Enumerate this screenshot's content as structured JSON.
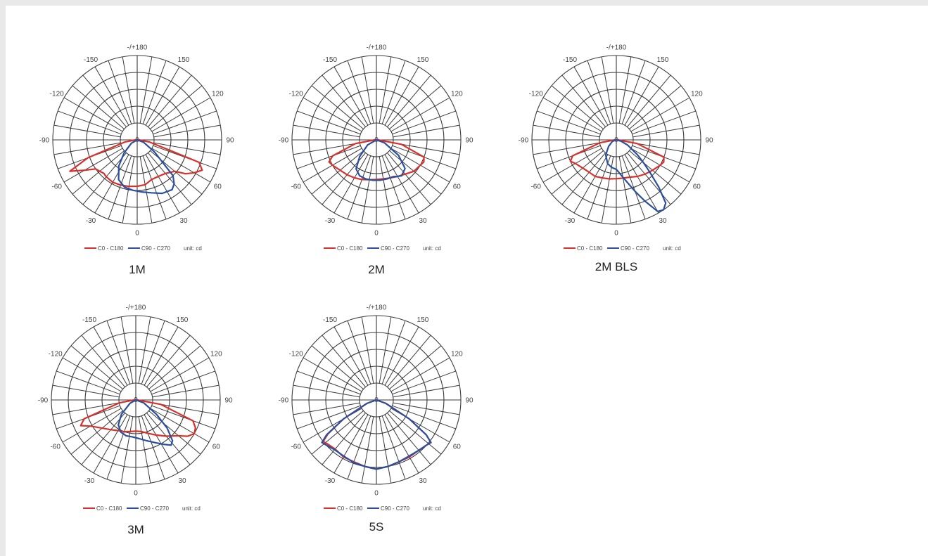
{
  "colors": {
    "c0_c180": "#d9302b",
    "c90_c270": "#2b4fa0",
    "grid": "#3a3a3a"
  },
  "chart_data": [
    {
      "type": "polar",
      "title": "1M",
      "angle_labels": [
        "-/+180",
        "150",
        "120",
        "90",
        "60",
        "30",
        "0",
        "-30",
        "-60",
        "-90",
        "-120",
        "-150"
      ],
      "center_label": "0",
      "legend": [
        "C0 - C180",
        "C90 - C270",
        "unit: cd"
      ],
      "series": [
        {
          "name": "C0 - C180",
          "color": "#d9302b",
          "points": [
            [
              -90,
              0.02
            ],
            [
              -80,
              0.15
            ],
            [
              -70,
              0.62
            ],
            [
              -65,
              0.88
            ],
            [
              -60,
              0.72
            ],
            [
              -55,
              0.6
            ],
            [
              -50,
              0.58
            ],
            [
              -45,
              0.56
            ],
            [
              -40,
              0.57
            ],
            [
              -30,
              0.58
            ],
            [
              -20,
              0.57
            ],
            [
              -10,
              0.56
            ],
            [
              0,
              0.55
            ],
            [
              10,
              0.54
            ],
            [
              20,
              0.5
            ],
            [
              30,
              0.5
            ],
            [
              40,
              0.52
            ],
            [
              50,
              0.58
            ],
            [
              55,
              0.7
            ],
            [
              60,
              0.78
            ],
            [
              65,
              0.85
            ],
            [
              70,
              0.78
            ],
            [
              80,
              0.15
            ],
            [
              90,
              0.02
            ]
          ]
        },
        {
          "name": "C90 - C270",
          "color": "#2b4fa0",
          "points": [
            [
              -90,
              0.0
            ],
            [
              -60,
              0.08
            ],
            [
              -45,
              0.22
            ],
            [
              -35,
              0.38
            ],
            [
              -25,
              0.52
            ],
            [
              -15,
              0.58
            ],
            [
              -5,
              0.6
            ],
            [
              5,
              0.62
            ],
            [
              15,
              0.65
            ],
            [
              25,
              0.7
            ],
            [
              35,
              0.72
            ],
            [
              40,
              0.68
            ],
            [
              45,
              0.6
            ],
            [
              55,
              0.25
            ],
            [
              70,
              0.08
            ],
            [
              90,
              0.0
            ]
          ]
        }
      ]
    },
    {
      "type": "polar",
      "title": "2M",
      "angle_labels": [
        "-/+180",
        "150",
        "120",
        "90",
        "60",
        "30",
        "0",
        "-30",
        "-60",
        "-90",
        "-120",
        "-150"
      ],
      "center_label": "0",
      "legend": [
        "C0 - C180",
        "C90 - C270",
        "unit: cd"
      ],
      "series": [
        {
          "name": "C0 - C180",
          "color": "#d9302b",
          "points": [
            [
              -90,
              0.02
            ],
            [
              -80,
              0.25
            ],
            [
              -70,
              0.55
            ],
            [
              -65,
              0.62
            ],
            [
              -60,
              0.6
            ],
            [
              -50,
              0.56
            ],
            [
              -40,
              0.54
            ],
            [
              -30,
              0.52
            ],
            [
              -20,
              0.5
            ],
            [
              -10,
              0.48
            ],
            [
              0,
              0.47
            ],
            [
              10,
              0.47
            ],
            [
              20,
              0.48
            ],
            [
              30,
              0.5
            ],
            [
              40,
              0.53
            ],
            [
              50,
              0.58
            ],
            [
              60,
              0.6
            ],
            [
              65,
              0.62
            ],
            [
              70,
              0.6
            ],
            [
              80,
              0.3
            ],
            [
              90,
              0.02
            ]
          ]
        },
        {
          "name": "C90 - C270",
          "color": "#2b4fa0",
          "points": [
            [
              -90,
              0.0
            ],
            [
              -60,
              0.12
            ],
            [
              -45,
              0.28
            ],
            [
              -35,
              0.42
            ],
            [
              -25,
              0.47
            ],
            [
              -15,
              0.48
            ],
            [
              -5,
              0.48
            ],
            [
              5,
              0.48
            ],
            [
              15,
              0.48
            ],
            [
              25,
              0.48
            ],
            [
              30,
              0.5
            ],
            [
              35,
              0.52
            ],
            [
              45,
              0.48
            ],
            [
              55,
              0.32
            ],
            [
              70,
              0.1
            ],
            [
              90,
              0.0
            ]
          ]
        }
      ]
    },
    {
      "type": "polar",
      "title": "2M BLS",
      "angle_labels": [
        "-/+180",
        "150",
        "120",
        "90",
        "60",
        "30",
        "0",
        "-30",
        "-60",
        "-90",
        "-120",
        "-150"
      ],
      "center_label": "0",
      "legend": [
        "C0 - C180",
        "C90 - C270",
        "unit: cd"
      ],
      "series": [
        {
          "name": "C0 - C180",
          "color": "#d9302b",
          "points": [
            [
              -90,
              0.02
            ],
            [
              -80,
              0.2
            ],
            [
              -70,
              0.55
            ],
            [
              -65,
              0.6
            ],
            [
              -60,
              0.56
            ],
            [
              -50,
              0.52
            ],
            [
              -40,
              0.5
            ],
            [
              -30,
              0.5
            ],
            [
              -20,
              0.48
            ],
            [
              -10,
              0.47
            ],
            [
              0,
              0.46
            ],
            [
              10,
              0.46
            ],
            [
              20,
              0.47
            ],
            [
              30,
              0.5
            ],
            [
              40,
              0.53
            ],
            [
              50,
              0.56
            ],
            [
              60,
              0.6
            ],
            [
              65,
              0.62
            ],
            [
              70,
              0.6
            ],
            [
              80,
              0.25
            ],
            [
              90,
              0.02
            ]
          ]
        },
        {
          "name": "C90 - C270",
          "color": "#2b4fa0",
          "points": [
            [
              -90,
              0.0
            ],
            [
              -70,
              0.05
            ],
            [
              -50,
              0.12
            ],
            [
              -35,
              0.22
            ],
            [
              -20,
              0.3
            ],
            [
              -10,
              0.33
            ],
            [
              0,
              0.35
            ],
            [
              10,
              0.45
            ],
            [
              20,
              0.65
            ],
            [
              25,
              0.8
            ],
            [
              30,
              0.98
            ],
            [
              34,
              1.0
            ],
            [
              38,
              0.95
            ],
            [
              42,
              0.75
            ],
            [
              46,
              0.55
            ],
            [
              50,
              0.42
            ],
            [
              55,
              0.3
            ],
            [
              65,
              0.15
            ],
            [
              75,
              0.06
            ],
            [
              90,
              0.0
            ]
          ]
        }
      ]
    },
    {
      "type": "polar",
      "title": "3M",
      "angle_labels": [
        "-/+180",
        "150",
        "120",
        "90",
        "60",
        "30",
        "0",
        "-30",
        "-60",
        "-90",
        "-120",
        "-150"
      ],
      "center_label": "0",
      "legend": [
        "C0 - C180",
        "C90 - C270",
        "unit: cd"
      ],
      "series": [
        {
          "name": "C0 - C180",
          "color": "#d9302b",
          "points": [
            [
              -90,
              0.02
            ],
            [
              -80,
              0.2
            ],
            [
              -70,
              0.65
            ],
            [
              -65,
              0.72
            ],
            [
              -60,
              0.62
            ],
            [
              -50,
              0.52
            ],
            [
              -40,
              0.46
            ],
            [
              -30,
              0.42
            ],
            [
              -20,
              0.4
            ],
            [
              -10,
              0.38
            ],
            [
              0,
              0.37
            ],
            [
              10,
              0.38
            ],
            [
              20,
              0.42
            ],
            [
              30,
              0.48
            ],
            [
              40,
              0.56
            ],
            [
              50,
              0.66
            ],
            [
              55,
              0.75
            ],
            [
              60,
              0.8
            ],
            [
              65,
              0.78
            ],
            [
              70,
              0.72
            ],
            [
              80,
              0.3
            ],
            [
              90,
              0.02
            ]
          ]
        },
        {
          "name": "C90 - C270",
          "color": "#2b4fa0",
          "points": [
            [
              -90,
              0.0
            ],
            [
              -60,
              0.08
            ],
            [
              -45,
              0.24
            ],
            [
              -35,
              0.36
            ],
            [
              -25,
              0.42
            ],
            [
              -15,
              0.44
            ],
            [
              -5,
              0.44
            ],
            [
              5,
              0.46
            ],
            [
              15,
              0.5
            ],
            [
              25,
              0.56
            ],
            [
              32,
              0.62
            ],
            [
              38,
              0.68
            ],
            [
              42,
              0.65
            ],
            [
              48,
              0.5
            ],
            [
              55,
              0.3
            ],
            [
              70,
              0.1
            ],
            [
              90,
              0.0
            ]
          ]
        }
      ]
    },
    {
      "type": "polar",
      "title": "5S",
      "angle_labels": [
        "-/+180",
        "150",
        "120",
        "90",
        "60",
        "30",
        "0",
        "-30",
        "-60",
        "-90",
        "-120",
        "-150"
      ],
      "center_label": "0",
      "legend": [
        "C0 - C180",
        "C90 - C270",
        "unit: cd"
      ],
      "series": [
        {
          "name": "C0 - C180",
          "color": "#d9302b",
          "points": [
            [
              -90,
              0.0
            ],
            [
              -70,
              0.12
            ],
            [
              -60,
              0.45
            ],
            [
              -55,
              0.7
            ],
            [
              -52,
              0.8
            ],
            [
              -48,
              0.78
            ],
            [
              -40,
              0.76
            ],
            [
              -30,
              0.78
            ],
            [
              -20,
              0.78
            ],
            [
              -10,
              0.8
            ],
            [
              0,
              0.82
            ],
            [
              10,
              0.8
            ],
            [
              20,
              0.78
            ],
            [
              30,
              0.78
            ],
            [
              40,
              0.78
            ],
            [
              48,
              0.8
            ],
            [
              52,
              0.82
            ],
            [
              55,
              0.72
            ],
            [
              60,
              0.45
            ],
            [
              70,
              0.12
            ],
            [
              90,
              0.0
            ]
          ]
        },
        {
          "name": "C90 - C270",
          "color": "#2b4fa0",
          "points": [
            [
              -90,
              0.0
            ],
            [
              -70,
              0.12
            ],
            [
              -60,
              0.45
            ],
            [
              -55,
              0.72
            ],
            [
              -52,
              0.82
            ],
            [
              -48,
              0.8
            ],
            [
              -40,
              0.77
            ],
            [
              -30,
              0.77
            ],
            [
              -20,
              0.79
            ],
            [
              -10,
              0.8
            ],
            [
              0,
              0.82
            ],
            [
              10,
              0.8
            ],
            [
              20,
              0.78
            ],
            [
              30,
              0.77
            ],
            [
              40,
              0.78
            ],
            [
              48,
              0.8
            ],
            [
              52,
              0.82
            ],
            [
              55,
              0.72
            ],
            [
              60,
              0.45
            ],
            [
              70,
              0.12
            ],
            [
              90,
              0.0
            ]
          ]
        }
      ]
    }
  ]
}
